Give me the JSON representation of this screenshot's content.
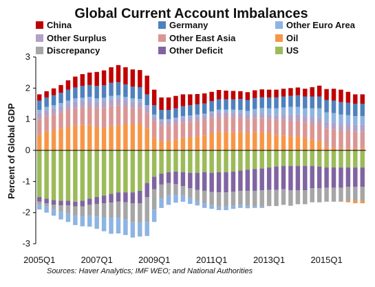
{
  "chart_data": {
    "type": "bar",
    "stacked": true,
    "title": "Global Current Account Imbalances",
    "ylabel": "Percent of Global GDP",
    "ylim": [
      -3,
      3
    ],
    "yticks": [
      "3",
      "2",
      "1",
      "0",
      "-1",
      "-2",
      "-3"
    ],
    "xtick_labels": [
      "2005Q1",
      "2007Q1",
      "2009Q1",
      "2011Q1",
      "2013Q1",
      "2015Q1"
    ],
    "categories": [
      "2005Q1",
      "2005Q2",
      "2005Q3",
      "2005Q4",
      "2006Q1",
      "2006Q2",
      "2006Q3",
      "2006Q4",
      "2007Q1",
      "2007Q2",
      "2007Q3",
      "2007Q4",
      "2008Q1",
      "2008Q2",
      "2008Q3",
      "2008Q4",
      "2009Q1",
      "2009Q2",
      "2009Q3",
      "2009Q4",
      "2010Q1",
      "2010Q2",
      "2010Q3",
      "2010Q4",
      "2011Q1",
      "2011Q2",
      "2011Q3",
      "2011Q4",
      "2012Q1",
      "2012Q2",
      "2012Q3",
      "2012Q4",
      "2013Q1",
      "2013Q2",
      "2013Q3",
      "2013Q4",
      "2014Q1",
      "2014Q2",
      "2014Q3",
      "2014Q4",
      "2015Q1",
      "2015Q2",
      "2015Q3",
      "2015Q4",
      "2016Q1",
      "2016Q2"
    ],
    "source": "Sources: Haver Analytics; IMF WEO; and National Authorities",
    "legend_position": "top",
    "series": [
      {
        "name": "Oil",
        "color": "#F79646",
        "values": [
          0.5,
          0.6,
          0.65,
          0.7,
          0.75,
          0.8,
          0.82,
          0.8,
          0.75,
          0.72,
          0.78,
          0.8,
          0.85,
          0.85,
          0.85,
          0.7,
          0.4,
          0.3,
          0.3,
          0.35,
          0.4,
          0.42,
          0.45,
          0.48,
          0.55,
          0.6,
          0.58,
          0.58,
          0.6,
          0.55,
          0.58,
          0.58,
          0.55,
          0.5,
          0.48,
          0.45,
          0.45,
          0.4,
          0.35,
          0.3,
          0.1,
          0.08,
          0.05,
          0.05,
          0.05,
          0.05
        ]
      },
      {
        "name": "Other East Asia",
        "color": "#DA9694",
        "values": [
          0.5,
          0.5,
          0.5,
          0.52,
          0.55,
          0.55,
          0.55,
          0.6,
          0.6,
          0.65,
          0.65,
          0.65,
          0.55,
          0.5,
          0.5,
          0.5,
          0.55,
          0.5,
          0.5,
          0.5,
          0.5,
          0.5,
          0.5,
          0.5,
          0.5,
          0.48,
          0.5,
          0.48,
          0.45,
          0.45,
          0.45,
          0.45,
          0.45,
          0.48,
          0.5,
          0.5,
          0.5,
          0.5,
          0.52,
          0.55,
          0.6,
          0.6,
          0.58,
          0.58,
          0.55,
          0.55
        ]
      },
      {
        "name": "Other Surplus",
        "color": "#B2A1C7",
        "values": [
          0.2,
          0.2,
          0.2,
          0.2,
          0.2,
          0.22,
          0.22,
          0.22,
          0.22,
          0.22,
          0.22,
          0.22,
          0.22,
          0.22,
          0.2,
          0.2,
          0.15,
          0.15,
          0.15,
          0.15,
          0.15,
          0.15,
          0.15,
          0.15,
          0.15,
          0.15,
          0.15,
          0.15,
          0.15,
          0.15,
          0.15,
          0.15,
          0.15,
          0.15,
          0.18,
          0.2,
          0.2,
          0.2,
          0.2,
          0.2,
          0.22,
          0.22,
          0.22,
          0.22,
          0.22,
          0.22
        ]
      },
      {
        "name": "Other Euro Area",
        "color": "#8DB4E2",
        "values": [
          0.1,
          0.1,
          0.1,
          0.1,
          0.1,
          0.1,
          0.1,
          0.1,
          0.1,
          0.1,
          0.1,
          0.1,
          0.1,
          0.1,
          0.1,
          0.05,
          0.05,
          0.05,
          0.05,
          0.05,
          0.05,
          0.05,
          0.05,
          0.05,
          0.05,
          0.08,
          0.08,
          0.1,
          0.1,
          0.12,
          0.15,
          0.18,
          0.2,
          0.22,
          0.22,
          0.25,
          0.25,
          0.25,
          0.28,
          0.3,
          0.3,
          0.3,
          0.3,
          0.28,
          0.28,
          0.28
        ]
      },
      {
        "name": "Germany",
        "color": "#4F81BD",
        "values": [
          0.3,
          0.3,
          0.32,
          0.33,
          0.35,
          0.35,
          0.38,
          0.38,
          0.4,
          0.4,
          0.42,
          0.42,
          0.4,
          0.38,
          0.38,
          0.35,
          0.3,
          0.3,
          0.3,
          0.3,
          0.32,
          0.33,
          0.33,
          0.33,
          0.33,
          0.33,
          0.33,
          0.33,
          0.35,
          0.35,
          0.35,
          0.35,
          0.35,
          0.35,
          0.35,
          0.35,
          0.37,
          0.38,
          0.38,
          0.38,
          0.4,
          0.4,
          0.4,
          0.4,
          0.4,
          0.4
        ]
      },
      {
        "name": "China",
        "color": "#C00000",
        "values": [
          0.2,
          0.2,
          0.22,
          0.25,
          0.3,
          0.35,
          0.38,
          0.4,
          0.45,
          0.48,
          0.5,
          0.55,
          0.55,
          0.55,
          0.55,
          0.6,
          0.5,
          0.4,
          0.4,
          0.4,
          0.38,
          0.35,
          0.33,
          0.32,
          0.3,
          0.3,
          0.28,
          0.27,
          0.25,
          0.25,
          0.25,
          0.25,
          0.25,
          0.25,
          0.25,
          0.25,
          0.25,
          0.25,
          0.3,
          0.35,
          0.35,
          0.38,
          0.4,
          0.35,
          0.3,
          0.3
        ]
      },
      {
        "name": "US",
        "color": "#9BBB59",
        "values": [
          -1.5,
          -1.55,
          -1.6,
          -1.62,
          -1.62,
          -1.65,
          -1.62,
          -1.55,
          -1.5,
          -1.45,
          -1.4,
          -1.35,
          -1.35,
          -1.35,
          -1.3,
          -1.05,
          -0.85,
          -0.75,
          -0.7,
          -0.68,
          -0.7,
          -0.72,
          -0.72,
          -0.7,
          -0.72,
          -0.7,
          -0.7,
          -0.68,
          -0.65,
          -0.62,
          -0.6,
          -0.58,
          -0.55,
          -0.52,
          -0.5,
          -0.5,
          -0.5,
          -0.5,
          -0.5,
          -0.52,
          -0.55,
          -0.55,
          -0.55,
          -0.55,
          -0.55,
          -0.55
        ]
      },
      {
        "name": "Other Deficit",
        "color": "#8064A2",
        "values": [
          -0.15,
          -0.15,
          -0.15,
          -0.15,
          -0.15,
          -0.15,
          -0.18,
          -0.2,
          -0.22,
          -0.25,
          -0.28,
          -0.3,
          -0.32,
          -0.35,
          -0.4,
          -0.45,
          -0.4,
          -0.35,
          -0.35,
          -0.4,
          -0.45,
          -0.5,
          -0.55,
          -0.6,
          -0.62,
          -0.65,
          -0.65,
          -0.65,
          -0.65,
          -0.68,
          -0.7,
          -0.7,
          -0.72,
          -0.75,
          -0.75,
          -0.78,
          -0.78,
          -0.78,
          -0.72,
          -0.7,
          -0.65,
          -0.65,
          -0.65,
          -0.62,
          -0.62,
          -0.62
        ]
      },
      {
        "name": "Discrepancy",
        "color": "#A6A6A6",
        "values": [
          -0.1,
          -0.1,
          -0.15,
          -0.2,
          -0.25,
          -0.3,
          -0.32,
          -0.35,
          -0.4,
          -0.45,
          -0.5,
          -0.52,
          -0.55,
          -0.6,
          -0.62,
          -0.8,
          -0.65,
          -0.45,
          -0.4,
          -0.35,
          -0.3,
          -0.3,
          -0.35,
          -0.4,
          -0.42,
          -0.45,
          -0.45,
          -0.45,
          -0.45,
          -0.48,
          -0.5,
          -0.52,
          -0.52,
          -0.52,
          -0.5,
          -0.5,
          -0.45,
          -0.45,
          -0.45,
          -0.45,
          -0.45,
          -0.45,
          -0.45,
          -0.45,
          -0.45,
          -0.45
        ]
      },
      {
        "name": "Other Euro Area",
        "color": "#8DB4E2",
        "values": [
          -0.15,
          -0.2,
          -0.2,
          -0.25,
          -0.28,
          -0.3,
          -0.32,
          -0.35,
          -0.4,
          -0.45,
          -0.5,
          -0.5,
          -0.5,
          -0.5,
          -0.45,
          -0.45,
          -0.4,
          -0.3,
          -0.3,
          -0.25,
          -0.2,
          -0.2,
          -0.15,
          -0.15,
          -0.12,
          -0.12,
          -0.12,
          -0.1,
          -0.1,
          -0.08,
          -0.05,
          -0.05,
          0,
          0,
          0,
          0,
          0,
          0,
          0,
          0,
          0,
          0,
          0,
          0,
          0,
          0
        ]
      },
      {
        "name": "Oil",
        "color": "#F79646",
        "values": [
          0,
          0,
          0,
          0,
          0,
          0,
          0,
          0,
          0,
          0,
          0,
          0,
          0,
          0,
          0,
          0,
          0,
          0,
          0,
          0,
          0,
          0,
          0,
          0,
          0,
          0,
          0,
          0,
          0,
          0,
          0,
          0,
          0,
          0,
          0,
          0,
          0,
          0,
          0,
          0,
          0,
          0,
          0,
          -0.05,
          -0.08,
          -0.08
        ]
      }
    ],
    "legend": [
      {
        "label": "China",
        "color": "#C00000"
      },
      {
        "label": "Germany",
        "color": "#4F81BD"
      },
      {
        "label": "Other Euro Area",
        "color": "#8DB4E2"
      },
      {
        "label": "Other Surplus",
        "color": "#B2A1C7"
      },
      {
        "label": "Other East Asia",
        "color": "#DA9694"
      },
      {
        "label": "Oil",
        "color": "#F79646"
      },
      {
        "label": "Discrepancy",
        "color": "#A6A6A6"
      },
      {
        "label": "Other Deficit",
        "color": "#8064A2"
      },
      {
        "label": "US",
        "color": "#9BBB59"
      }
    ]
  }
}
